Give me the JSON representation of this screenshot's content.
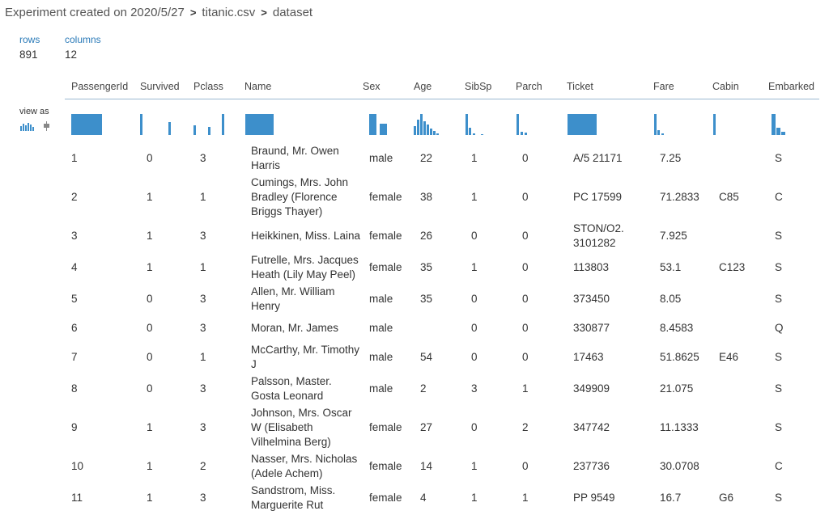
{
  "breadcrumb": [
    "Experiment created on 2020/5/27",
    "titanic.csv",
    "dataset"
  ],
  "stats": [
    {
      "label": "rows",
      "value": "891"
    },
    {
      "label": "columns",
      "value": "12"
    }
  ],
  "view_as": "view as",
  "table": {
    "headers": [
      "PassengerId",
      "Survived",
      "Pclass",
      "Name",
      "Sex",
      "Age",
      "SibSp",
      "Parch",
      "Ticket",
      "Fare",
      "Cabin",
      "Embarked"
    ],
    "rows": [
      [
        "1",
        "0",
        "3",
        "Braund, Mr. Owen Harris",
        "male",
        "22",
        "1",
        "0",
        "A/5 21171",
        "7.25",
        null,
        "S"
      ],
      [
        "2",
        "1",
        "1",
        "Cumings, Mrs. John Bradley (Florence Briggs Thayer)",
        "female",
        "38",
        "1",
        "0",
        "PC 17599",
        "71.2833",
        "C85",
        "C"
      ],
      [
        "3",
        "1",
        "3",
        "Heikkinen, Miss. Laina",
        "female",
        "26",
        "0",
        "0",
        "STON/O2. 3101282",
        "7.925",
        null,
        "S"
      ],
      [
        "4",
        "1",
        "1",
        "Futrelle, Mrs. Jacques Heath (Lily May Peel)",
        "female",
        "35",
        "1",
        "0",
        "113803",
        "53.1",
        "C123",
        "S"
      ],
      [
        "5",
        "0",
        "3",
        "Allen, Mr. William Henry",
        "male",
        "35",
        "0",
        "0",
        "373450",
        "8.05",
        null,
        "S"
      ],
      [
        "6",
        "0",
        "3",
        "Moran, Mr. James",
        "male",
        null,
        "0",
        "0",
        "330877",
        "8.4583",
        null,
        "Q"
      ],
      [
        "7",
        "0",
        "1",
        "McCarthy, Mr. Timothy J",
        "male",
        "54",
        "0",
        "0",
        "17463",
        "51.8625",
        "E46",
        "S"
      ],
      [
        "8",
        "0",
        "3",
        "Palsson, Master. Gosta Leonard",
        "male",
        "2",
        "3",
        "1",
        "349909",
        "21.075",
        null,
        "S"
      ],
      [
        "9",
        "1",
        "3",
        "Johnson, Mrs. Oscar W (Elisabeth Vilhelmina Berg)",
        "female",
        "27",
        "0",
        "2",
        "347742",
        "11.1333",
        null,
        "S"
      ],
      [
        "10",
        "1",
        "2",
        "Nasser, Mrs. Nicholas (Adele Achem)",
        "female",
        "14",
        "1",
        "0",
        "237736",
        "30.0708",
        null,
        "C"
      ],
      [
        "11",
        "1",
        "3",
        "Sandstrom, Miss. Marguerite Rut",
        "female",
        "4",
        "1",
        "1",
        "PP 9549",
        "16.7",
        "G6",
        "S"
      ]
    ]
  }
}
